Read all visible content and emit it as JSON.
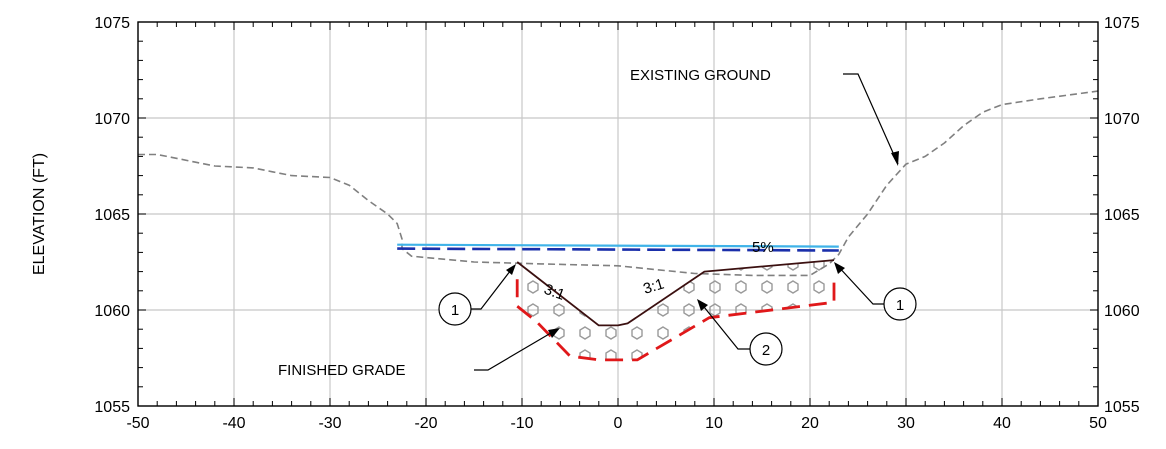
{
  "chart_data": {
    "type": "cross-section",
    "ylabel": "ELEVATION (FT)",
    "xlim": [
      -50,
      50
    ],
    "ylim": [
      1055,
      1075
    ],
    "x_ticks": [
      -50,
      -40,
      -30,
      -20,
      -10,
      0,
      10,
      20,
      30,
      40,
      50
    ],
    "y_ticks": [
      1055,
      1060,
      1065,
      1070,
      1075
    ],
    "grid": true,
    "series": [
      {
        "name": "EXISTING GROUND",
        "style": "dashed-gray",
        "color": "#808080",
        "points": [
          [
            -50,
            1068.1
          ],
          [
            -48,
            1068.1
          ],
          [
            -46,
            1067.9
          ],
          [
            -44,
            1067.7
          ],
          [
            -42,
            1067.5
          ],
          [
            -38,
            1067.4
          ],
          [
            -36,
            1067.2
          ],
          [
            -34,
            1067.0
          ],
          [
            -30,
            1066.9
          ],
          [
            -28,
            1066.5
          ],
          [
            -26,
            1065.7
          ],
          [
            -24,
            1065.0
          ],
          [
            -23,
            1064.5
          ],
          [
            -22.5,
            1063.7
          ],
          [
            -22.5,
            1063.2
          ],
          [
            -21.5,
            1062.8
          ],
          [
            -15,
            1062.5
          ],
          [
            -8,
            1062.4
          ],
          [
            0,
            1062.3
          ],
          [
            8,
            1061.9
          ],
          [
            14,
            1061.8
          ],
          [
            20,
            1061.8
          ],
          [
            22,
            1062.4
          ],
          [
            23,
            1062.9
          ],
          [
            24,
            1063.8
          ],
          [
            26,
            1065.0
          ],
          [
            28,
            1066.5
          ],
          [
            30,
            1067.6
          ],
          [
            32,
            1068.0
          ],
          [
            34,
            1068.7
          ],
          [
            36,
            1069.6
          ],
          [
            38,
            1070.3
          ],
          [
            40,
            1070.7
          ],
          [
            44,
            1071.0
          ],
          [
            50,
            1071.4
          ]
        ]
      },
      {
        "name": "FINISHED GRADE",
        "style": "solid-dark",
        "color": "#3b1010",
        "points": [
          [
            -10.5,
            1062.5
          ],
          [
            -2,
            1059.2
          ],
          [
            0,
            1059.2
          ],
          [
            1,
            1059.3
          ],
          [
            9,
            1062.0
          ],
          [
            22.5,
            1062.6
          ]
        ]
      },
      {
        "name": "cyan-line",
        "style": "solid",
        "color": "#3fb3e8",
        "points": [
          [
            -23,
            1063.4
          ],
          [
            23,
            1063.3
          ]
        ]
      },
      {
        "name": "blue-dashed",
        "style": "dashed",
        "color": "#1a2faa",
        "points": [
          [
            -23,
            1063.2
          ],
          [
            23,
            1063.1
          ]
        ]
      },
      {
        "name": "red-dashed",
        "style": "dashed",
        "color": "#e0181a",
        "points": [
          [
            -10.5,
            1061.6
          ],
          [
            -10.5,
            1060.2
          ],
          [
            -8.5,
            1059.4
          ],
          [
            -5,
            1057.6
          ],
          [
            -2,
            1057.4
          ],
          [
            2,
            1057.4
          ],
          [
            9.5,
            1059.6
          ],
          [
            22.5,
            1060.4
          ],
          [
            22.5,
            1061.8
          ]
        ]
      }
    ],
    "annotations": [
      {
        "text": "EXISTING GROUND"
      },
      {
        "text": "FINISHED GRADE"
      },
      {
        "text": "5%"
      },
      {
        "text": "3:1"
      },
      {
        "text": "3:1"
      },
      {
        "text": "1"
      },
      {
        "text": "1"
      },
      {
        "text": "2"
      }
    ]
  }
}
